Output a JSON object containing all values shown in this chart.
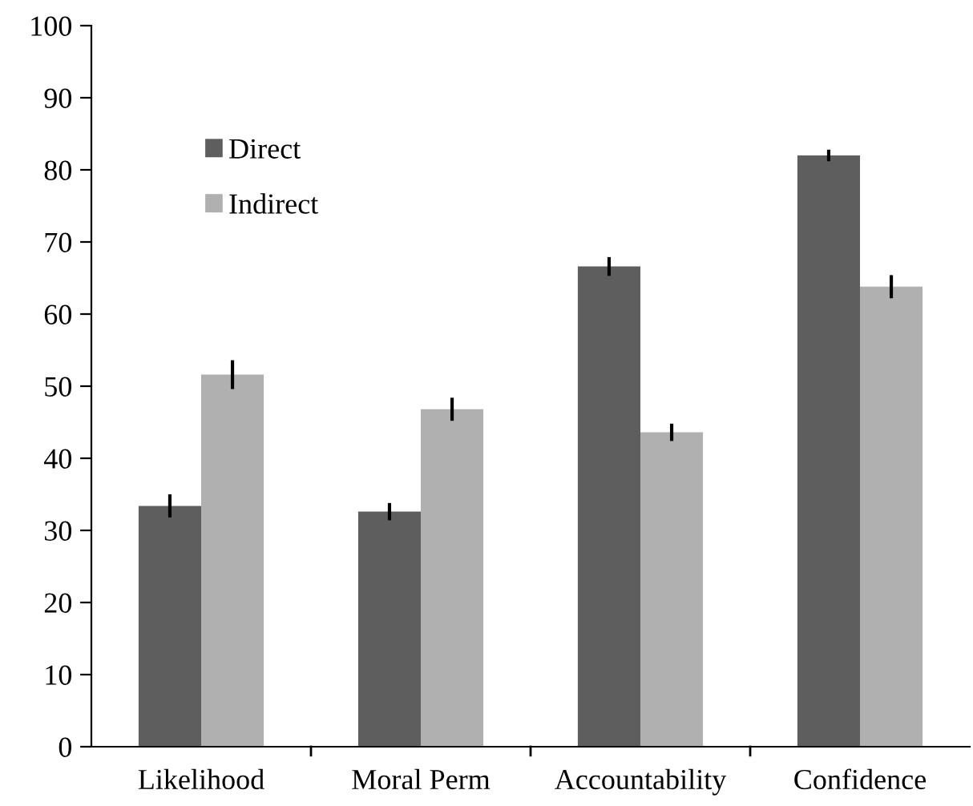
{
  "chart_data": {
    "type": "bar",
    "categories": [
      "Likelihood",
      "Moral Perm",
      "Accountability",
      "Confidence"
    ],
    "series": [
      {
        "name": "Direct",
        "color": "#5e5e5e",
        "values": [
          33.4,
          32.6,
          66.6,
          82.0
        ],
        "errors": [
          1.6,
          1.2,
          1.3,
          0.8
        ]
      },
      {
        "name": "Indirect",
        "color": "#b0b0b0",
        "values": [
          51.6,
          46.8,
          43.6,
          63.8
        ],
        "errors": [
          2.0,
          1.6,
          1.2,
          1.6
        ]
      }
    ],
    "ylim": [
      0,
      100
    ],
    "yticks": [
      0,
      10,
      20,
      30,
      40,
      50,
      60,
      70,
      80,
      90,
      100
    ],
    "grid": false,
    "legend": "top left"
  }
}
